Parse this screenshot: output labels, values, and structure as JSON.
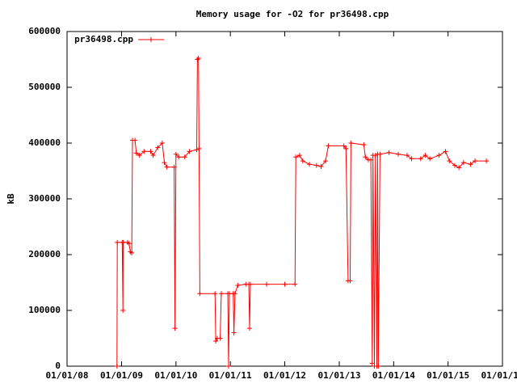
{
  "chart_data": {
    "type": "line",
    "title": "Memory usage for -O2 for pr36498.cpp",
    "y_label": "kB",
    "xlim": [
      "2008-01-01",
      "2016-01-01"
    ],
    "xticks": [
      {
        "value": "2008-01-01",
        "label": "01/01/08"
      },
      {
        "value": "2009-01-01",
        "label": "01/01/09"
      },
      {
        "value": "2010-01-01",
        "label": "01/01/10"
      },
      {
        "value": "2011-01-01",
        "label": "01/01/11"
      },
      {
        "value": "2012-01-01",
        "label": "01/01/12"
      },
      {
        "value": "2013-01-01",
        "label": "01/01/13"
      },
      {
        "value": "2014-01-01",
        "label": "01/01/14"
      },
      {
        "value": "2015-01-01",
        "label": "01/01/15"
      },
      {
        "value": "2016-01-01",
        "label": "01/01/16"
      }
    ],
    "ylim": [
      0,
      600000
    ],
    "yticks": [
      0,
      100000,
      200000,
      300000,
      400000,
      500000,
      600000
    ],
    "legend": "top-left",
    "x": [
      "2008-12-01",
      "2008-12-03",
      "2009-01-05",
      "2009-01-10",
      "2009-01-12",
      "2009-02-10",
      "2009-02-20",
      "2009-03-01",
      "2009-03-10",
      "2009-03-15",
      "2009-04-01",
      "2009-04-10",
      "2009-05-01",
      "2009-06-01",
      "2009-07-15",
      "2009-08-01",
      "2009-09-01",
      "2009-10-01",
      "2009-10-15",
      "2009-11-01",
      "2009-12-20",
      "2009-12-25",
      "2010-01-01",
      "2010-01-20",
      "2010-03-01",
      "2010-04-01",
      "2010-05-20",
      "2010-05-25",
      "2010-06-01",
      "2010-06-05",
      "2010-06-10",
      "2010-09-20",
      "2010-09-25",
      "2010-10-05",
      "2010-10-25",
      "2010-11-01",
      "2010-12-15",
      "2010-12-20",
      "2010-12-25",
      "2011-01-20",
      "2011-01-25",
      "2011-02-01",
      "2011-02-20",
      "2011-04-15",
      "2011-05-05",
      "2011-05-10",
      "2011-05-15",
      "2011-09-01",
      "2012-01-01",
      "2012-03-10",
      "2012-03-15",
      "2012-04-10",
      "2012-05-01",
      "2012-06-15",
      "2012-08-01",
      "2012-09-01",
      "2012-10-01",
      "2012-10-20",
      "2013-02-01",
      "2013-02-15",
      "2013-03-01",
      "2013-03-15",
      "2013-03-20",
      "2013-06-15",
      "2013-06-25",
      "2013-07-15",
      "2013-08-01",
      "2013-08-10",
      "2013-08-15",
      "2013-08-25",
      "2013-09-01",
      "2013-09-10",
      "2013-09-15",
      "2013-09-20",
      "2013-10-01",
      "2013-12-01",
      "2014-02-01",
      "2014-04-01",
      "2014-05-01",
      "2014-07-01",
      "2014-08-01",
      "2014-09-01",
      "2014-11-01",
      "2014-12-15",
      "2015-01-10",
      "2015-02-15",
      "2015-03-15",
      "2015-04-15",
      "2015-06-01",
      "2015-07-01",
      "2015-09-15"
    ],
    "series": [
      {
        "name": "pr36498.cpp",
        "color": "#ff0000",
        "values": [
          0,
          222000,
          222000,
          100000,
          222000,
          222000,
          220000,
          205000,
          203000,
          405000,
          405000,
          382000,
          378000,
          385000,
          385000,
          378000,
          392000,
          400000,
          365000,
          357000,
          357000,
          68000,
          380000,
          375000,
          375000,
          385000,
          388000,
          550000,
          552000,
          390000,
          130000,
          130000,
          45000,
          50000,
          50000,
          130000,
          130000,
          0,
          130000,
          130000,
          60000,
          130000,
          145000,
          147000,
          147000,
          68000,
          147000,
          147000,
          147000,
          147000,
          375000,
          378000,
          368000,
          362000,
          360000,
          358000,
          368000,
          395000,
          395000,
          390000,
          153000,
          153000,
          400000,
          397000,
          375000,
          370000,
          370000,
          5000,
          378000,
          0,
          378000,
          0,
          380000,
          0,
          380000,
          383000,
          380000,
          378000,
          372000,
          372000,
          378000,
          372000,
          378000,
          385000,
          368000,
          360000,
          356000,
          365000,
          362000,
          368000,
          368000
        ]
      }
    ]
  }
}
